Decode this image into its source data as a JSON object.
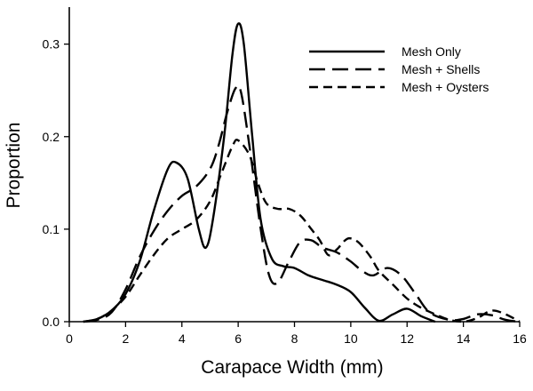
{
  "chart_data": {
    "type": "line",
    "title": "",
    "xlabel": "Carapace Width (mm)",
    "ylabel": "Proportion",
    "xlim": [
      0,
      16
    ],
    "ylim": [
      0,
      0.34
    ],
    "xticks": [
      0,
      2,
      4,
      6,
      8,
      10,
      12,
      14,
      16
    ],
    "yticks": [
      0.0,
      0.1,
      0.2,
      0.3
    ],
    "xtick_labels": [
      "0",
      "2",
      "4",
      "6",
      "8",
      "10",
      "12",
      "14",
      "16"
    ],
    "ytick_labels": [
      "0.0",
      "0.1",
      "0.2",
      "0.3"
    ],
    "grid": false,
    "legend_position": "top-right",
    "series": [
      {
        "name": "Mesh Only",
        "style": "solid",
        "points": [
          [
            0.5,
            0
          ],
          [
            1,
            0.003
          ],
          [
            1.5,
            0.012
          ],
          [
            2,
            0.03
          ],
          [
            2.5,
            0.065
          ],
          [
            3,
            0.12
          ],
          [
            3.5,
            0.165
          ],
          [
            3.8,
            0.172
          ],
          [
            4.2,
            0.155
          ],
          [
            4.6,
            0.1
          ],
          [
            4.85,
            0.08
          ],
          [
            5.1,
            0.11
          ],
          [
            5.5,
            0.2
          ],
          [
            5.8,
            0.29
          ],
          [
            6,
            0.322
          ],
          [
            6.2,
            0.3
          ],
          [
            6.5,
            0.2
          ],
          [
            6.8,
            0.11
          ],
          [
            7.2,
            0.068
          ],
          [
            7.6,
            0.06
          ],
          [
            8,
            0.058
          ],
          [
            8.5,
            0.05
          ],
          [
            9,
            0.045
          ],
          [
            9.5,
            0.04
          ],
          [
            10,
            0.032
          ],
          [
            10.5,
            0.015
          ],
          [
            11,
            0.001
          ],
          [
            11.5,
            0.008
          ],
          [
            12,
            0.014
          ],
          [
            12.5,
            0.006
          ],
          [
            13,
            0
          ]
        ]
      },
      {
        "name": "Mesh + Shells",
        "style": "long-dash",
        "points": [
          [
            0.5,
            0
          ],
          [
            1,
            0.002
          ],
          [
            1.5,
            0.01
          ],
          [
            2,
            0.035
          ],
          [
            2.5,
            0.07
          ],
          [
            3,
            0.098
          ],
          [
            3.5,
            0.12
          ],
          [
            4,
            0.136
          ],
          [
            4.5,
            0.146
          ],
          [
            5,
            0.165
          ],
          [
            5.3,
            0.19
          ],
          [
            5.6,
            0.225
          ],
          [
            5.9,
            0.252
          ],
          [
            6.1,
            0.248
          ],
          [
            6.4,
            0.19
          ],
          [
            6.8,
            0.1
          ],
          [
            7.1,
            0.05
          ],
          [
            7.4,
            0.042
          ],
          [
            7.8,
            0.065
          ],
          [
            8.2,
            0.086
          ],
          [
            8.6,
            0.088
          ],
          [
            9,
            0.08
          ],
          [
            9.5,
            0.075
          ],
          [
            10,
            0.065
          ],
          [
            10.4,
            0.055
          ],
          [
            10.8,
            0.05
          ],
          [
            11.3,
            0.058
          ],
          [
            11.8,
            0.05
          ],
          [
            12.3,
            0.03
          ],
          [
            12.8,
            0.01
          ],
          [
            13.5,
            0.002
          ],
          [
            14,
            0.003
          ],
          [
            14.5,
            0.008
          ],
          [
            15,
            0.007
          ],
          [
            15.5,
            0.002
          ],
          [
            16,
            0
          ]
        ]
      },
      {
        "name": "Mesh + Oysters",
        "style": "short-dash",
        "points": [
          [
            0.5,
            0
          ],
          [
            1,
            0.003
          ],
          [
            1.5,
            0.012
          ],
          [
            2,
            0.027
          ],
          [
            2.5,
            0.05
          ],
          [
            3,
            0.072
          ],
          [
            3.5,
            0.09
          ],
          [
            4,
            0.1
          ],
          [
            4.5,
            0.11
          ],
          [
            5,
            0.13
          ],
          [
            5.4,
            0.16
          ],
          [
            5.8,
            0.19
          ],
          [
            6,
            0.196
          ],
          [
            6.4,
            0.18
          ],
          [
            6.7,
            0.15
          ],
          [
            7,
            0.128
          ],
          [
            7.4,
            0.122
          ],
          [
            7.8,
            0.122
          ],
          [
            8.2,
            0.115
          ],
          [
            8.6,
            0.1
          ],
          [
            8.9,
            0.088
          ],
          [
            9.2,
            0.072
          ],
          [
            9.5,
            0.078
          ],
          [
            9.8,
            0.088
          ],
          [
            10,
            0.09
          ],
          [
            10.3,
            0.085
          ],
          [
            10.7,
            0.07
          ],
          [
            11,
            0.055
          ],
          [
            11.5,
            0.04
          ],
          [
            12,
            0.025
          ],
          [
            12.5,
            0.015
          ],
          [
            13,
            0.008
          ],
          [
            13.5,
            0.002
          ],
          [
            14,
            0
          ],
          [
            14.5,
            0.004
          ],
          [
            15,
            0.012
          ],
          [
            15.5,
            0.008
          ],
          [
            16,
            0
          ]
        ]
      }
    ]
  }
}
